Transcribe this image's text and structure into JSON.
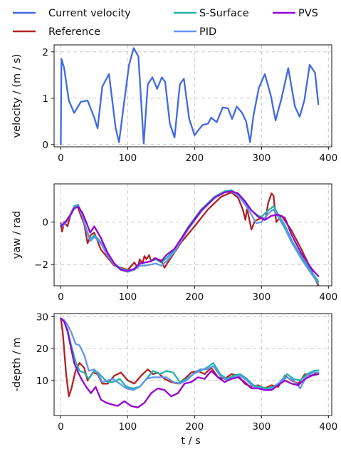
{
  "legend": [
    {
      "label": "Current velocity",
      "color": "#4169e1"
    },
    {
      "label": "Reference",
      "color": "#b22222"
    },
    {
      "label": "S-Surface",
      "color": "#20b2aa"
    },
    {
      "label": "PID",
      "color": "#6495ed"
    },
    {
      "label": "PVS",
      "color": "#9400d3"
    }
  ],
  "chart_data": [
    {
      "type": "line",
      "ylabel": "velocity / (m / s)",
      "xlabel": "",
      "xlim": [
        -10,
        405
      ],
      "ylim": [
        -0.05,
        2.15
      ],
      "xticks": [
        0,
        100,
        200,
        300,
        400
      ],
      "yticks": [
        0,
        1,
        2
      ],
      "grid": true,
      "series": [
        {
          "name": "Current velocity",
          "color": "#4169e1",
          "x": [
            0,
            1,
            5,
            12,
            20,
            30,
            40,
            50,
            55,
            62,
            72,
            82,
            87,
            95,
            102,
            109,
            116,
            124,
            130,
            137,
            144,
            151,
            156,
            163,
            170,
            178,
            184,
            192,
            200,
            205,
            212,
            220,
            225,
            233,
            242,
            250,
            256,
            263,
            271,
            277,
            283,
            288,
            296,
            305,
            314,
            321,
            330,
            340,
            350,
            357,
            364,
            372,
            380,
            385
          ],
          "y": [
            0.0,
            1.85,
            1.65,
            0.95,
            0.68,
            0.92,
            0.95,
            0.58,
            0.35,
            1.25,
            1.52,
            0.35,
            0.05,
            0.95,
            1.72,
            2.08,
            1.9,
            0.02,
            1.3,
            1.45,
            1.2,
            1.45,
            1.35,
            0.45,
            0.15,
            1.3,
            1.42,
            0.55,
            0.2,
            0.3,
            0.42,
            0.45,
            0.58,
            0.48,
            0.8,
            0.78,
            0.55,
            0.82,
            0.68,
            0.5,
            0.05,
            0.62,
            1.22,
            1.52,
            1.05,
            0.52,
            1.0,
            1.65,
            0.82,
            0.6,
            0.95,
            1.72,
            1.55,
            0.87
          ]
        }
      ]
    },
    {
      "type": "line",
      "ylabel": "yaw / rad",
      "xlabel": "",
      "xlim": [
        -10,
        405
      ],
      "ylim": [
        -3.0,
        1.8
      ],
      "xticks": [
        0,
        100,
        200,
        300,
        400
      ],
      "yticks": [
        -2,
        0
      ],
      "grid": true,
      "series": [
        {
          "name": "Reference",
          "color": "#b22222",
          "x": [
            0,
            2,
            5,
            10,
            15,
            20,
            25,
            30,
            35,
            40,
            45,
            50,
            60,
            80,
            100,
            110,
            115,
            118,
            122,
            125,
            128,
            132,
            135,
            140,
            150,
            155,
            160,
            180,
            200,
            220,
            240,
            255,
            265,
            272,
            276,
            278,
            280,
            285,
            290,
            300,
            306,
            310,
            315,
            318,
            322,
            330,
            345,
            360,
            375,
            385
          ],
          "y": [
            -0.05,
            -0.45,
            0.0,
            -0.2,
            0.4,
            0.72,
            0.75,
            0.3,
            -0.1,
            -1.0,
            -0.6,
            -0.5,
            -1.3,
            -2.05,
            -2.25,
            -1.9,
            -2.15,
            -1.75,
            -1.95,
            -1.6,
            -1.75,
            -1.55,
            -1.85,
            -1.7,
            -1.8,
            -2.15,
            -1.9,
            -0.95,
            -0.2,
            0.6,
            1.2,
            1.4,
            1.15,
            0.6,
            0.1,
            0.6,
            0.4,
            -0.35,
            0.05,
            0.2,
            0.15,
            0.9,
            1.35,
            1.25,
            0.0,
            0.3,
            -0.4,
            -1.3,
            -2.3,
            -3.0
          ]
        },
        {
          "name": "S-Surface",
          "color": "#20b2aa",
          "x": [
            0,
            3,
            8,
            14,
            20,
            26,
            32,
            38,
            44,
            50,
            60,
            70,
            80,
            90,
            100,
            110,
            118,
            126,
            134,
            142,
            150,
            158,
            170,
            190,
            210,
            230,
            245,
            255,
            265,
            275,
            285,
            295,
            300,
            310,
            318,
            325,
            335,
            345,
            360,
            375,
            385
          ],
          "y": [
            -0.1,
            -0.15,
            0.05,
            0.35,
            0.75,
            0.82,
            0.35,
            -0.3,
            -0.85,
            -0.6,
            -0.95,
            -1.55,
            -1.95,
            -2.2,
            -2.28,
            -2.2,
            -1.95,
            -1.9,
            -1.85,
            -1.75,
            -1.9,
            -1.7,
            -1.3,
            -0.25,
            0.6,
            1.2,
            1.45,
            1.5,
            1.3,
            0.9,
            0.55,
            0.3,
            0.25,
            0.55,
            0.75,
            0.35,
            -0.15,
            -0.85,
            -1.65,
            -2.35,
            -2.8
          ]
        },
        {
          "name": "PID",
          "color": "#6495ed",
          "x": [
            0,
            3,
            8,
            14,
            20,
            26,
            32,
            38,
            44,
            50,
            60,
            70,
            80,
            90,
            100,
            110,
            118,
            126,
            134,
            142,
            150,
            158,
            170,
            190,
            210,
            230,
            245,
            255,
            265,
            275,
            285,
            292,
            300,
            310,
            318,
            325,
            335,
            345,
            360,
            375,
            385
          ],
          "y": [
            -0.15,
            -0.2,
            0.0,
            0.3,
            0.68,
            0.78,
            0.3,
            -0.35,
            -0.9,
            -0.7,
            -1.0,
            -1.6,
            -2.0,
            -2.25,
            -2.35,
            -2.25,
            -2.05,
            -2.05,
            -2.0,
            -1.95,
            -2.05,
            -1.85,
            -1.4,
            -0.35,
            0.5,
            1.15,
            1.4,
            1.45,
            1.25,
            0.85,
            0.35,
            -0.05,
            0.0,
            0.4,
            0.6,
            0.25,
            -0.3,
            -0.95,
            -1.75,
            -2.45,
            -2.9
          ]
        },
        {
          "name": "PVS",
          "color": "#9400d3",
          "x": [
            0,
            3,
            8,
            14,
            20,
            26,
            32,
            38,
            44,
            50,
            60,
            70,
            80,
            90,
            100,
            110,
            118,
            126,
            134,
            142,
            150,
            158,
            170,
            190,
            210,
            230,
            245,
            255,
            265,
            275,
            285,
            295,
            305,
            315,
            325,
            335,
            345,
            360,
            375,
            385
          ],
          "y": [
            -0.2,
            -0.1,
            0.05,
            0.3,
            0.65,
            0.72,
            0.45,
            0.0,
            -0.5,
            -0.2,
            -0.75,
            -1.45,
            -1.95,
            -2.25,
            -2.3,
            -2.2,
            -1.95,
            -1.9,
            -1.85,
            -1.7,
            -1.85,
            -1.55,
            -1.25,
            -0.3,
            0.55,
            1.15,
            1.4,
            1.45,
            1.35,
            1.0,
            0.55,
            0.25,
            0.1,
            0.3,
            0.35,
            0.2,
            -0.6,
            -1.5,
            -2.2,
            -2.55
          ]
        }
      ]
    },
    {
      "type": "line",
      "ylabel": "-depth / m",
      "xlabel": "t / s",
      "xlim": [
        -10,
        405
      ],
      "ylim": [
        -1,
        31
      ],
      "xticks": [
        0,
        100,
        200,
        300,
        400
      ],
      "yticks": [
        10,
        20,
        30
      ],
      "grid": true,
      "series": [
        {
          "name": "Reference",
          "color": "#b22222",
          "x": [
            0,
            3,
            8,
            12,
            16,
            22,
            28,
            35,
            40,
            48,
            55,
            62,
            70,
            80,
            90,
            100,
            110,
            120,
            130,
            138,
            145,
            155,
            165,
            175,
            185,
            195,
            205,
            215,
            225,
            235,
            245,
            255,
            265,
            275,
            285,
            295,
            305,
            315,
            325,
            335,
            345,
            355,
            365,
            375,
            385
          ],
          "y": [
            29.5,
            25.0,
            12.0,
            5.0,
            7.5,
            13.0,
            15.5,
            14.0,
            10.0,
            12.5,
            12.0,
            9.0,
            9.0,
            11.5,
            12.5,
            10.0,
            9.0,
            11.5,
            13.5,
            12.0,
            12.5,
            10.5,
            9.5,
            9.0,
            10.5,
            12.5,
            13.0,
            12.0,
            14.0,
            11.0,
            10.5,
            12.0,
            11.5,
            9.0,
            8.0,
            8.5,
            7.5,
            8.5,
            8.0,
            11.5,
            10.0,
            9.0,
            12.0,
            11.5,
            12.5
          ]
        },
        {
          "name": "S-Surface",
          "color": "#20b2aa",
          "x": [
            0,
            5,
            10,
            15,
            22,
            28,
            35,
            42,
            50,
            56,
            62,
            70,
            78,
            88,
            98,
            108,
            118,
            128,
            138,
            148,
            158,
            168,
            178,
            188,
            198,
            208,
            218,
            228,
            238,
            248,
            258,
            268,
            278,
            288,
            298,
            308,
            318,
            328,
            338,
            348,
            358,
            368,
            378,
            385
          ],
          "y": [
            29.5,
            28.5,
            26.0,
            21.5,
            16.0,
            13.0,
            12.5,
            10.5,
            13.0,
            12.5,
            11.0,
            9.5,
            9.5,
            10.5,
            8.0,
            7.5,
            8.0,
            10.5,
            13.0,
            12.0,
            13.0,
            12.5,
            9.5,
            10.5,
            12.0,
            13.0,
            14.0,
            15.5,
            12.0,
            10.5,
            11.5,
            12.0,
            10.5,
            8.5,
            8.0,
            7.5,
            8.0,
            9.5,
            12.0,
            10.5,
            10.0,
            12.0,
            13.0,
            13.2
          ]
        },
        {
          "name": "PID",
          "color": "#6495ed",
          "x": [
            0,
            5,
            10,
            16,
            22,
            28,
            35,
            42,
            50,
            56,
            62,
            70,
            78,
            88,
            98,
            108,
            118,
            128,
            138,
            148,
            158,
            168,
            178,
            188,
            198,
            208,
            218,
            228,
            238,
            248,
            258,
            268,
            278,
            288,
            298,
            308,
            318,
            328,
            338,
            348,
            358,
            368,
            378,
            385
          ],
          "y": [
            29.5,
            29.0,
            27.5,
            25.0,
            21.5,
            21.0,
            18.0,
            13.0,
            13.5,
            12.0,
            9.5,
            10.0,
            10.5,
            9.0,
            7.5,
            7.0,
            8.0,
            10.5,
            11.0,
            11.0,
            11.0,
            9.5,
            9.0,
            10.0,
            12.0,
            13.5,
            13.5,
            14.5,
            11.5,
            10.0,
            11.0,
            11.5,
            10.0,
            8.0,
            7.5,
            7.0,
            7.5,
            9.5,
            11.0,
            10.0,
            7.5,
            11.5,
            12.5,
            12.5
          ]
        },
        {
          "name": "PVS",
          "color": "#9400d3",
          "x": [
            0,
            5,
            10,
            15,
            20,
            26,
            32,
            38,
            45,
            52,
            60,
            68,
            76,
            85,
            95,
            105,
            115,
            125,
            135,
            145,
            155,
            165,
            175,
            185,
            195,
            205,
            215,
            225,
            235,
            245,
            255,
            265,
            275,
            285,
            295,
            305,
            315,
            325,
            335,
            345,
            355,
            365,
            375,
            385
          ],
          "y": [
            29.5,
            28.5,
            25.5,
            20.5,
            15.5,
            12.5,
            10.0,
            8.0,
            6.0,
            8.0,
            4.0,
            3.0,
            2.5,
            2.0,
            3.5,
            2.0,
            1.5,
            3.0,
            6.0,
            7.5,
            7.0,
            5.0,
            6.0,
            9.0,
            9.5,
            11.0,
            10.5,
            13.0,
            11.0,
            9.5,
            10.5,
            11.0,
            9.5,
            7.5,
            7.5,
            7.0,
            7.0,
            8.5,
            10.0,
            9.0,
            8.5,
            10.5,
            11.5,
            12.0
          ]
        }
      ]
    }
  ]
}
